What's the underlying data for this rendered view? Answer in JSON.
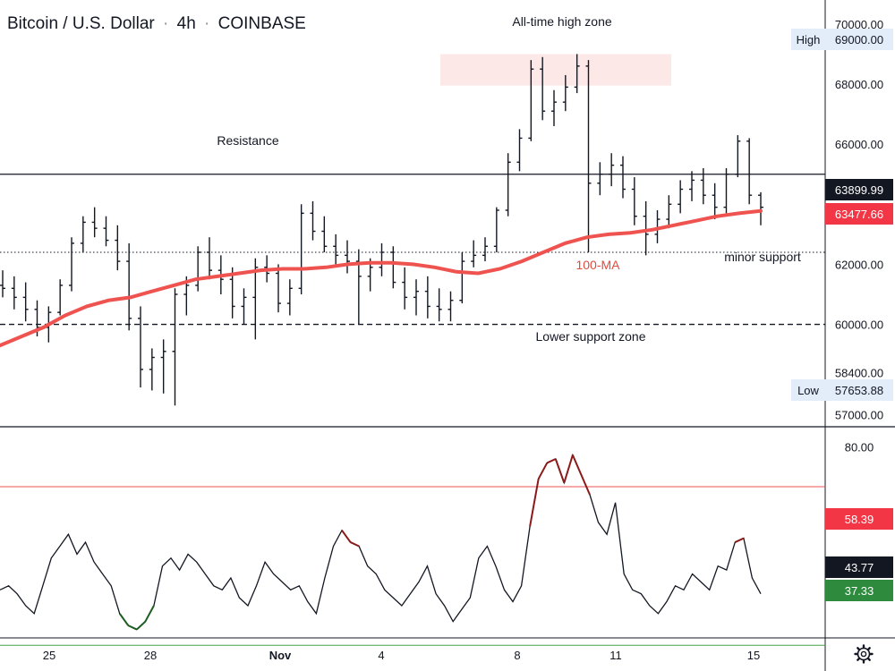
{
  "header": {
    "symbol": "Bitcoin / U.S. Dollar",
    "interval": "4h",
    "exchange": "COINBASE",
    "separator": "·"
  },
  "chart_data": [
    {
      "type": "candlestick",
      "title": "Bitcoin / U.S. Dollar · 4h · COINBASE",
      "ylim": [
        56800,
        70800
      ],
      "y_ticks": [
        "70000.00",
        "69000.00",
        "68000.00",
        "66000.00",
        "62000.00",
        "60000.00",
        "58400.00",
        "57000.00"
      ],
      "y_tick_values": [
        70000,
        69000,
        68000,
        66000,
        62000,
        60000,
        58400,
        57000
      ],
      "x_ticks": [
        "25",
        "28",
        "Nov",
        "4",
        "8",
        "11",
        "15"
      ],
      "ohlc_sample": [
        [
          61300,
          61800,
          60900,
          61200
        ],
        [
          61200,
          61600,
          60500,
          60900
        ],
        [
          60900,
          61400,
          60100,
          60500
        ],
        [
          60500,
          60800,
          59600,
          59900
        ],
        [
          59900,
          60600,
          59400,
          60400
        ],
        [
          60400,
          61500,
          60300,
          61300
        ],
        [
          61300,
          62900,
          61100,
          62700
        ],
        [
          62700,
          63600,
          62400,
          63400
        ],
        [
          63400,
          63900,
          62900,
          63200
        ],
        [
          63200,
          63600,
          62600,
          62800
        ],
        [
          62800,
          63300,
          61800,
          62100
        ],
        [
          62100,
          62700,
          59800,
          60200
        ],
        [
          60200,
          60600,
          57900,
          58500
        ],
        [
          58500,
          59200,
          57800,
          58900
        ],
        [
          58900,
          59500,
          57700,
          59100
        ],
        [
          59100,
          61200,
          57300,
          61000
        ],
        [
          61000,
          61600,
          60300,
          61300
        ],
        [
          61300,
          62600,
          61100,
          62400
        ],
        [
          62400,
          62900,
          61500,
          61800
        ],
        [
          61800,
          62300,
          61000,
          61500
        ],
        [
          61500,
          61900,
          60200,
          60600
        ],
        [
          60600,
          61200,
          60000,
          60900
        ],
        [
          60900,
          62200,
          59500,
          61900
        ],
        [
          61900,
          62300,
          61400,
          61700
        ],
        [
          61700,
          62000,
          60400,
          60700
        ],
        [
          60700,
          61500,
          60300,
          61200
        ],
        [
          61200,
          64000,
          61000,
          63700
        ],
        [
          63700,
          64100,
          62800,
          63100
        ],
        [
          63100,
          63600,
          62400,
          62600
        ],
        [
          62600,
          63000,
          62000,
          62300
        ],
        [
          62300,
          62800,
          61700,
          62100
        ],
        [
          62100,
          62500,
          60000,
          61600
        ],
        [
          61600,
          62200,
          61100,
          61900
        ],
        [
          61900,
          62700,
          61600,
          62400
        ],
        [
          62400,
          62600,
          61200,
          61400
        ],
        [
          61400,
          61900,
          60500,
          60900
        ],
        [
          60900,
          61500,
          60300,
          61100
        ],
        [
          61100,
          61600,
          60200,
          60600
        ],
        [
          60600,
          61200,
          60100,
          60500
        ],
        [
          60500,
          61100,
          60100,
          60800
        ],
        [
          60800,
          62400,
          60700,
          62100
        ],
        [
          62100,
          62800,
          61900,
          62300
        ],
        [
          62300,
          62900,
          62100,
          62600
        ],
        [
          62600,
          63900,
          62400,
          63800
        ],
        [
          63800,
          65700,
          63600,
          65400
        ],
        [
          65400,
          66500,
          65100,
          66200
        ],
        [
          66200,
          68800,
          66100,
          68500
        ],
        [
          68500,
          68900,
          66800,
          67100
        ],
        [
          67100,
          67800,
          66600,
          67400
        ],
        [
          67400,
          68300,
          67100,
          67900
        ],
        [
          67900,
          69000,
          67700,
          68600
        ],
        [
          68600,
          68800,
          62400,
          64700
        ],
        [
          64700,
          65400,
          64300,
          65000
        ],
        [
          65000,
          65700,
          64600,
          65300
        ],
        [
          65300,
          65600,
          64200,
          64500
        ],
        [
          64500,
          64900,
          63300,
          63600
        ],
        [
          63600,
          64100,
          62300,
          63000
        ],
        [
          63000,
          63800,
          62700,
          63500
        ],
        [
          63500,
          64300,
          63200,
          64000
        ],
        [
          64000,
          64800,
          63700,
          64500
        ],
        [
          64500,
          65100,
          64100,
          64800
        ],
        [
          64800,
          65200,
          64000,
          64300
        ],
        [
          64300,
          64700,
          63500,
          63900
        ],
        [
          63900,
          65200,
          63700,
          65000
        ],
        [
          65000,
          66300,
          64900,
          66100
        ],
        [
          66100,
          66200,
          64000,
          64300
        ],
        [
          64300,
          64400,
          63300,
          63900
        ]
      ],
      "series": [
        {
          "name": "100-MA",
          "color": "#ef5350",
          "values": [
            59300,
            59600,
            59900,
            60300,
            60600,
            60800,
            60900,
            61100,
            61300,
            61500,
            61600,
            61700,
            61800,
            61850,
            61850,
            61900,
            62000,
            62050,
            62050,
            62000,
            61900,
            61750,
            61700,
            61850,
            62100,
            62400,
            62700,
            62900,
            63000,
            63050,
            63150,
            63300,
            63450,
            63600,
            63700,
            63780
          ]
        }
      ],
      "price_labels": {
        "high_label": "High",
        "high_value": "69000.00",
        "low_label": "Low",
        "low_value": "57653.88",
        "last_value": "63899.99",
        "ma_value": "63477.66"
      },
      "annotations": {
        "all_time_high_zone": "All-time high zone",
        "resistance": "Resistance",
        "ma_label": "100-MA",
        "minor_support": "minor support",
        "lower_support_zone": "Lower support zone"
      },
      "levels": {
        "resistance": 65000,
        "minor_support": 62400,
        "lower_support": 60000,
        "ath_zone": [
          67950,
          69000
        ]
      }
    },
    {
      "type": "line",
      "title": "",
      "ylim": [
        33,
        84
      ],
      "y_ticks": [
        "80.00"
      ],
      "y_tick_values": [
        80
      ],
      "bands": {
        "upper": 70,
        "lower": 30
      },
      "series": [
        {
          "name": "",
          "color": "#131722",
          "values": [
            44,
            45,
            43,
            40,
            38,
            45,
            52,
            55,
            58,
            53,
            56,
            51,
            48,
            45,
            38,
            35,
            34,
            36,
            40,
            50,
            52,
            49,
            53,
            51,
            48,
            45,
            44,
            47,
            42,
            40,
            45,
            51,
            48,
            46,
            44,
            45,
            41,
            38,
            47,
            55,
            59,
            56,
            55,
            50,
            48,
            44,
            42,
            40,
            43,
            46,
            50,
            43,
            40,
            36,
            39,
            42,
            52,
            55,
            50,
            44,
            41,
            45,
            60,
            72,
            76,
            77,
            71,
            78,
            73,
            68,
            61,
            58,
            66,
            48,
            44,
            43,
            40,
            38,
            41,
            45,
            44,
            48,
            46,
            44,
            50,
            49,
            56,
            57,
            47,
            43
          ],
          "extra_labels": [
            "58.39",
            "43.77",
            "37.33"
          ]
        }
      ],
      "tag_values": {
        "upper": "58.39",
        "last": "43.77",
        "lower": "37.33"
      }
    }
  ],
  "colors": {
    "candle": "#131722",
    "ma": "#ef5350",
    "upper_band": "#ef5350",
    "lower_band": "#43a047",
    "ath_zone": "#fde8e8",
    "tag_dark": "#131722",
    "tag_red": "#f23645",
    "tag_green": "#2e8b3e",
    "tag_hl": "#e3ecf9"
  },
  "settings_icon": "gear-icon"
}
